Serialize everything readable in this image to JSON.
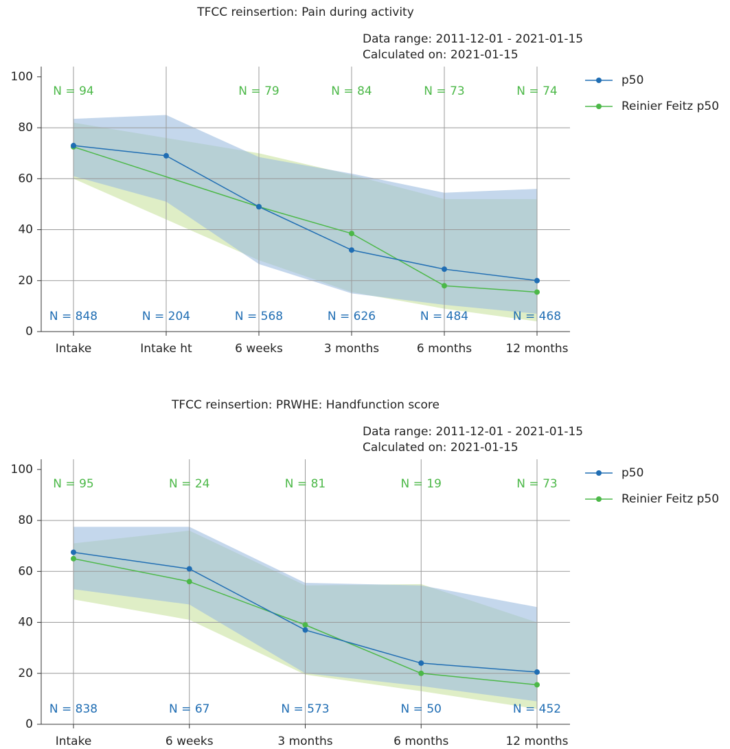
{
  "chart_data": [
    {
      "type": "line",
      "title": "TFCC reinsertion: Pain during activity",
      "subtitle": [
        "Data range: 2011-12-01 - 2021-01-15",
        "Calculated on: 2021-01-15"
      ],
      "categories": [
        "Intake",
        "Intake ht",
        "6 weeks",
        "3 months",
        "6 months",
        "12 months"
      ],
      "ylim": [
        0,
        104
      ],
      "yticks": [
        0,
        20,
        40,
        60,
        80,
        100
      ],
      "grid": true,
      "legend": "right",
      "series": [
        {
          "name": "p50",
          "color": "#1f6db3",
          "band_color": "#9dbde0",
          "values": [
            73,
            69,
            49,
            32,
            24.5,
            20
          ],
          "band_upper": [
            83.5,
            85,
            68.5,
            62,
            54.5,
            56
          ],
          "band_lower": [
            61,
            51,
            26.5,
            15,
            10.5,
            7
          ],
          "n_label_position": "bottom",
          "n_labels": [
            "N = 848",
            "N = 204",
            "N = 568",
            "N = 626",
            "N = 484",
            "N = 468"
          ]
        },
        {
          "name": "Reinier Feitz p50",
          "color": "#4cb848",
          "band_color": "#c9e3a0",
          "values": [
            72.5,
            null,
            49,
            38.5,
            18,
            15.5
          ],
          "band_upper": [
            82,
            null,
            70,
            61.5,
            52,
            52
          ],
          "band_lower": [
            60,
            null,
            28,
            15.5,
            9,
            4
          ],
          "n_label_position": "top",
          "n_labels": [
            "N = 94",
            null,
            "N = 79",
            "N = 84",
            "N = 73",
            "N = 74"
          ]
        }
      ]
    },
    {
      "type": "line",
      "title": "TFCC reinsertion: PRWHE: Handfunction score",
      "subtitle": [
        "Data range: 2011-12-01 - 2021-01-15",
        "Calculated on: 2021-01-15"
      ],
      "categories": [
        "Intake",
        "6 weeks",
        "3 months",
        "6 months",
        "12 months"
      ],
      "ylim": [
        0,
        104
      ],
      "yticks": [
        0,
        20,
        40,
        60,
        80,
        100
      ],
      "grid": true,
      "legend": "right",
      "series": [
        {
          "name": "p50",
          "color": "#1f6db3",
          "band_color": "#9dbde0",
          "values": [
            67.5,
            61,
            37,
            24,
            20.5
          ],
          "band_upper": [
            77.5,
            77.5,
            55.5,
            54.5,
            46
          ],
          "band_lower": [
            53,
            47,
            20,
            15,
            9
          ],
          "n_label_position": "bottom",
          "n_labels": [
            "N = 838",
            "N = 67",
            "N = 573",
            "N = 50",
            "N = 452"
          ]
        },
        {
          "name": "Reinier Feitz p50",
          "color": "#4cb848",
          "band_color": "#c9e3a0",
          "values": [
            65,
            56,
            39,
            20,
            15.5
          ],
          "band_upper": [
            71,
            76,
            54.5,
            55,
            40
          ],
          "band_lower": [
            49,
            41,
            19.5,
            13,
            6
          ],
          "n_label_position": "top",
          "n_labels": [
            "N = 95",
            "N = 24",
            "N = 81",
            "N = 19",
            "N = 73"
          ]
        }
      ]
    }
  ]
}
